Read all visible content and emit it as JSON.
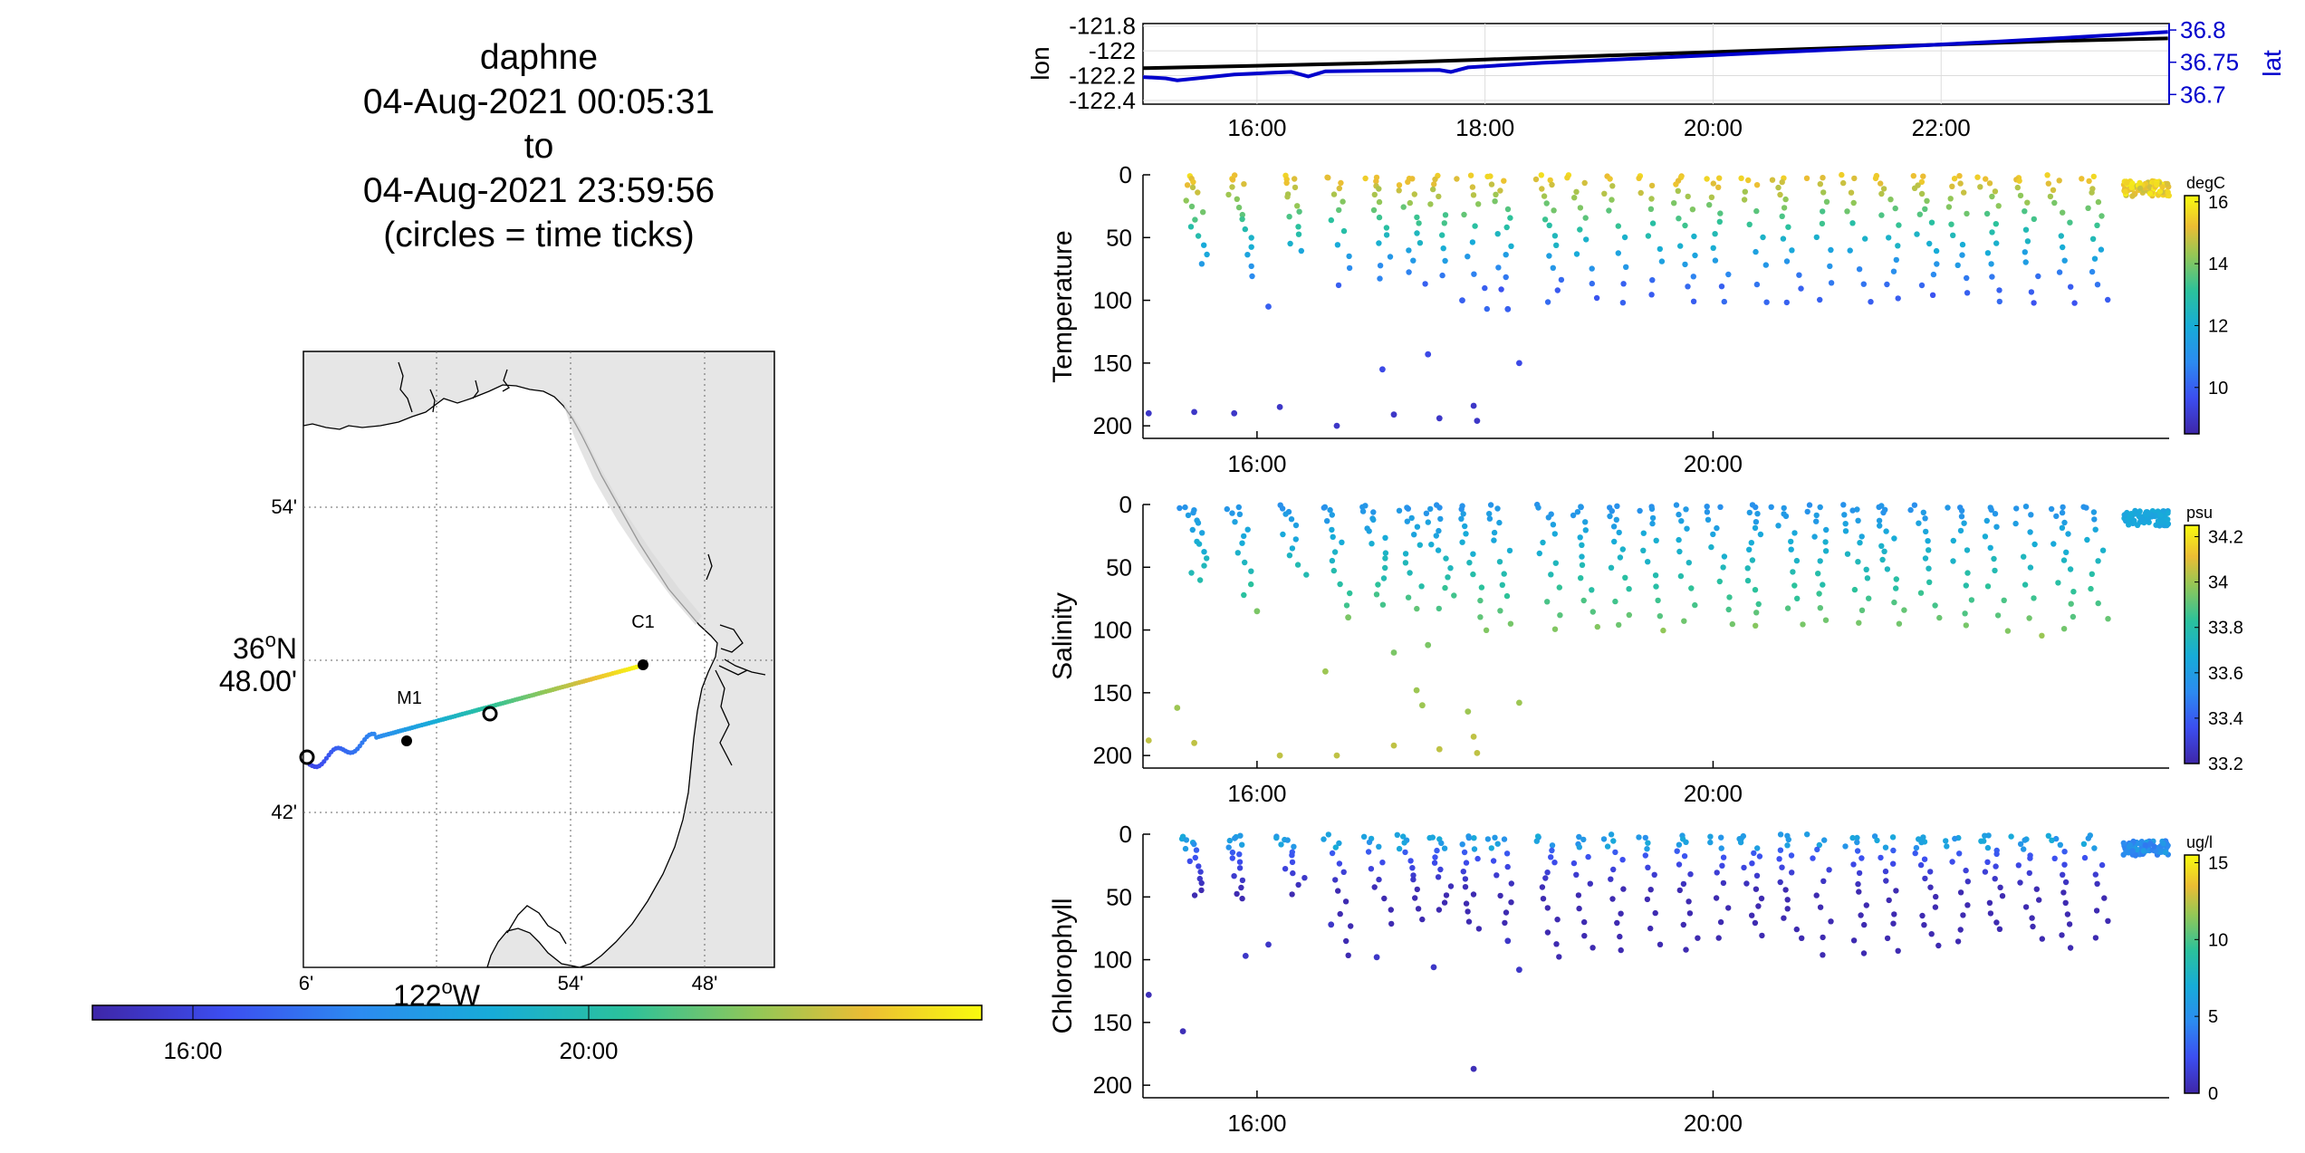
{
  "title": {
    "lines": [
      "daphne",
      "04-Aug-2021 00:05:31",
      "to",
      "04-Aug-2021 23:59:56",
      "(circles = time ticks)"
    ]
  },
  "map": {
    "lat_ticks": [
      "54'",
      "42'"
    ],
    "lat_main_deg": "36",
    "lat_main_sup": "o",
    "lat_main_hemi": "N",
    "lat_main_min": "48.00'",
    "lon_ticks": [
      "6'",
      "54'",
      "48'"
    ],
    "lon_main_deg": "122",
    "lon_main_sup": "o",
    "lon_main_hemi": "W",
    "station_labels": [
      "M1",
      "C1"
    ],
    "colorbar_ticks": [
      "16:00",
      "20:00"
    ],
    "land_color": "#e6e6e6",
    "water_color": "#ffffff"
  },
  "colors": {
    "parula_low": "#3e26a8",
    "parula_mid": "#21b7a6",
    "parula_high": "#f9fb0e",
    "lat_axis": "#0000cc"
  },
  "chart_data": [
    {
      "type": "line",
      "panel": "lon-lat",
      "ylabel_left": "lon",
      "ylabel_right": "lat",
      "yticks_left": [
        "-121.8",
        "-122",
        "-122.2",
        "-122.4"
      ],
      "yticks_right": [
        "36.8",
        "36.75",
        "36.7"
      ],
      "xticks": [
        "16:00",
        "18:00",
        "20:00",
        "22:00"
      ],
      "xlim_hours": [
        15.0,
        24.0
      ],
      "ylim_left": [
        -122.43,
        -121.78
      ],
      "ylim_right": [
        36.685,
        36.81
      ],
      "series": [
        {
          "axis": "left",
          "color": "#000000",
          "x": [
            15.0,
            16.0,
            17.0,
            18.0,
            19.0,
            20.0,
            21.0,
            22.0,
            23.0,
            23.99
          ],
          "y": [
            -122.14,
            -122.12,
            -122.1,
            -122.07,
            -122.04,
            -122.01,
            -121.98,
            -121.95,
            -121.92,
            -121.9
          ]
        },
        {
          "axis": "right",
          "color": "#0000cc",
          "x": [
            15.0,
            15.2,
            15.3,
            15.8,
            16.3,
            16.45,
            16.6,
            17.6,
            17.7,
            17.85,
            18.5,
            19.5,
            20.5,
            21.5,
            22.5,
            23.5,
            23.99
          ],
          "y": [
            36.727,
            36.725,
            36.722,
            36.731,
            36.735,
            36.728,
            36.736,
            36.738,
            36.735,
            36.742,
            36.749,
            36.757,
            36.765,
            36.773,
            36.782,
            36.792,
            36.797
          ]
        }
      ]
    },
    {
      "type": "scatter",
      "panel": "Temperature",
      "ylabel": "Temperature",
      "unit": "degC",
      "xticks": [
        "16:00",
        "20:00"
      ],
      "yticks": [
        "0",
        "50",
        "100",
        "150",
        "200"
      ],
      "ylim": [
        0,
        210
      ],
      "xlim_hours": [
        15.0,
        24.0
      ],
      "colorbar_ticks": [
        "16",
        "14",
        "12",
        "10"
      ],
      "clim": [
        8.5,
        16.2
      ],
      "deep_points": [
        [
          15.05,
          190,
          9.0
        ],
        [
          15.45,
          189,
          9.0
        ],
        [
          15.8,
          190,
          9.0
        ],
        [
          16.2,
          185,
          9.0
        ],
        [
          16.7,
          200,
          9.0
        ],
        [
          17.2,
          191,
          9.0
        ],
        [
          17.6,
          194,
          9.0
        ],
        [
          17.9,
          184,
          9.0
        ],
        [
          17.93,
          196,
          9.0
        ],
        [
          17.1,
          155,
          9.5
        ],
        [
          17.5,
          143,
          9.5
        ],
        [
          18.3,
          150,
          9.5
        ],
        [
          16.1,
          105,
          10.0
        ],
        [
          17.8,
          100,
          10.0
        ],
        [
          18.2,
          107,
          10.0
        ]
      ],
      "profile_times": [
        15.45,
        15.85,
        16.3,
        16.7,
        17.05,
        17.35,
        17.6,
        17.88,
        18.15,
        18.55,
        18.85,
        19.15,
        19.45,
        19.75,
        20.05,
        20.35,
        20.65,
        20.95,
        21.25,
        21.55,
        21.85,
        22.15,
        22.45,
        22.75,
        23.05,
        23.35
      ],
      "profile_max_depth": [
        70,
        80,
        60,
        85,
        80,
        85,
        78,
        105,
        90,
        100,
        98,
        100,
        95,
        98,
        100,
        99,
        100,
        98,
        100,
        96,
        95,
        92,
        100,
        102,
        100,
        98
      ]
    },
    {
      "type": "scatter",
      "panel": "Salinity",
      "ylabel": "Salinity",
      "unit": "psu",
      "xticks": [
        "16:00",
        "20:00"
      ],
      "yticks": [
        "0",
        "50",
        "100",
        "150",
        "200"
      ],
      "ylim": [
        0,
        210
      ],
      "xlim_hours": [
        15.0,
        24.0
      ],
      "colorbar_ticks": [
        "34.2",
        "34",
        "33.8",
        "33.6",
        "33.4",
        "33.2"
      ],
      "clim": [
        33.2,
        34.25
      ],
      "deep_points": [
        [
          15.05,
          188,
          34.05
        ],
        [
          15.45,
          190,
          34.05
        ],
        [
          15.3,
          162,
          34.0
        ],
        [
          16.2,
          200,
          34.05
        ],
        [
          16.7,
          200,
          34.05
        ],
        [
          17.2,
          192,
          34.05
        ],
        [
          17.6,
          195,
          34.05
        ],
        [
          17.9,
          185,
          34.05
        ],
        [
          17.93,
          198,
          34.05
        ],
        [
          17.85,
          165,
          34.0
        ],
        [
          18.3,
          158,
          34.0
        ],
        [
          16.6,
          133,
          34.0
        ],
        [
          17.4,
          148,
          34.0
        ],
        [
          17.45,
          160,
          34.0
        ],
        [
          16.0,
          85,
          33.95
        ],
        [
          16.8,
          90,
          33.95
        ],
        [
          17.2,
          118,
          33.95
        ],
        [
          17.5,
          112,
          33.95
        ]
      ],
      "profile_times": [
        15.45,
        15.85,
        16.3,
        16.7,
        17.05,
        17.35,
        17.6,
        17.88,
        18.15,
        18.55,
        18.85,
        19.15,
        19.45,
        19.75,
        20.05,
        20.35,
        20.65,
        20.95,
        21.25,
        21.55,
        21.85,
        22.15,
        22.45,
        22.75,
        23.05,
        23.35
      ],
      "profile_max_depth": [
        60,
        70,
        55,
        80,
        78,
        82,
        80,
        100,
        95,
        98,
        96,
        95,
        98,
        92,
        95,
        96,
        94,
        90,
        92,
        93,
        90,
        96,
        100,
        102,
        98,
        90
      ]
    },
    {
      "type": "scatter",
      "panel": "Chlorophyll",
      "ylabel": "Chlorophyll",
      "unit": "ug/l",
      "xticks": [
        "16:00",
        "20:00"
      ],
      "yticks": [
        "0",
        "50",
        "100",
        "150",
        "200"
      ],
      "ylim": [
        0,
        210
      ],
      "xlim_hours": [
        15.0,
        24.0
      ],
      "colorbar_ticks": [
        "15",
        "10",
        "5",
        "0"
      ],
      "clim": [
        0,
        15.5
      ],
      "deep_points": [
        [
          15.05,
          128,
          0.5
        ],
        [
          15.35,
          157,
          0.5
        ],
        [
          17.9,
          187,
          0.5
        ],
        [
          15.9,
          97,
          1.0
        ],
        [
          16.1,
          88,
          1.0
        ],
        [
          16.65,
          72,
          1.0
        ],
        [
          17.05,
          98,
          1.0
        ],
        [
          17.55,
          106,
          1.0
        ],
        [
          18.3,
          108,
          1.0
        ],
        [
          18.2,
          85,
          1.0
        ]
      ],
      "profile_times": [
        15.45,
        15.85,
        16.3,
        16.7,
        17.05,
        17.35,
        17.6,
        17.88,
        18.15,
        18.55,
        18.85,
        19.15,
        19.45,
        19.75,
        20.05,
        20.35,
        20.65,
        20.95,
        21.25,
        21.55,
        21.85,
        22.15,
        22.45,
        22.75,
        23.05,
        23.35
      ],
      "profile_max_depth": [
        48,
        50,
        45,
        95,
        70,
        65,
        60,
        75,
        70,
        95,
        90,
        92,
        85,
        90,
        80,
        78,
        82,
        95,
        92,
        90,
        88,
        85,
        75,
        82,
        90,
        80
      ]
    }
  ]
}
